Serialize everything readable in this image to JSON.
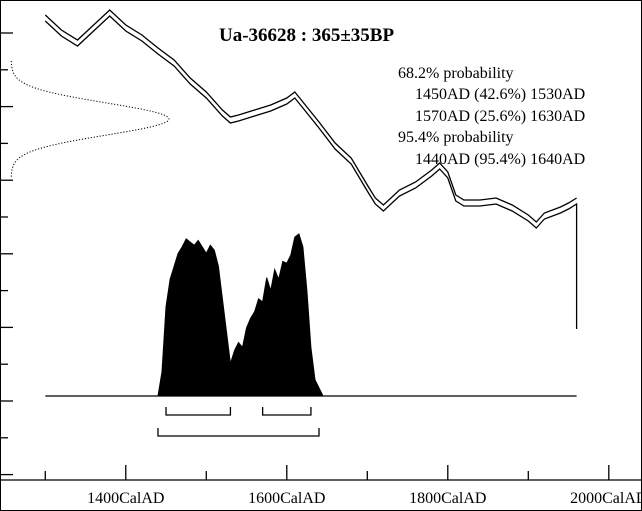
{
  "chart_data": {
    "type": "area",
    "title": "Ua-36628 : 365±35BP",
    "annotations": [
      "68.2% probability",
      "1450AD (42.6%) 1530AD",
      "1570AD (25.6%) 1630AD",
      "95.4% probability",
      "1440AD (95.4%) 1640AD"
    ],
    "x_ticks": [
      {
        "value": 1400,
        "label": "1400CalAD"
      },
      {
        "value": 1600,
        "label": "1600CalAD"
      },
      {
        "value": 1800,
        "label": "1800CalAD"
      },
      {
        "value": 2000,
        "label": "2000CalAD"
      }
    ],
    "xlim": [
      1245,
      2040
    ],
    "calibration_curve": {
      "x": [
        1300,
        1320,
        1340,
        1360,
        1380,
        1400,
        1420,
        1440,
        1460,
        1480,
        1500,
        1520,
        1530,
        1540,
        1560,
        1580,
        1600,
        1610,
        1620,
        1640,
        1660,
        1680,
        1700,
        1710,
        1720,
        1740,
        1760,
        1780,
        1790,
        1800,
        1810,
        1820,
        1840,
        1860,
        1880,
        1900,
        1910,
        1920,
        1940,
        1950,
        1960
      ],
      "y": [
        5,
        20,
        30,
        15,
        0,
        15,
        25,
        38,
        50,
        68,
        82,
        100,
        107,
        105,
        100,
        95,
        88,
        82,
        92,
        112,
        133,
        148,
        175,
        188,
        195,
        180,
        172,
        160,
        153,
        162,
        185,
        190,
        190,
        188,
        195,
        205,
        212,
        203,
        197,
        193,
        188
      ]
    },
    "radiocarbon_date": {
      "mean_bp": 365,
      "sigma_bp": 35
    },
    "probability_distribution": {
      "x": [
        1440,
        1445,
        1450,
        1455,
        1460,
        1465,
        1470,
        1475,
        1480,
        1485,
        1490,
        1495,
        1500,
        1505,
        1510,
        1515,
        1520,
        1525,
        1530,
        1535,
        1540,
        1545,
        1550,
        1555,
        1560,
        1565,
        1570,
        1575,
        1580,
        1585,
        1590,
        1595,
        1600,
        1605,
        1610,
        1615,
        1620,
        1625,
        1630,
        1635,
        1640,
        1645
      ],
      "density": [
        0,
        0.15,
        0.55,
        0.72,
        0.8,
        0.88,
        0.92,
        0.97,
        0.95,
        0.93,
        0.96,
        0.92,
        0.88,
        0.93,
        0.9,
        0.8,
        0.6,
        0.4,
        0.2,
        0.28,
        0.33,
        0.3,
        0.42,
        0.48,
        0.52,
        0.6,
        0.58,
        0.73,
        0.65,
        0.78,
        0.72,
        0.83,
        0.82,
        0.87,
        0.98,
        1.0,
        0.92,
        0.65,
        0.3,
        0.1,
        0.05,
        0
      ]
    },
    "ranges_68_2": [
      [
        1450,
        1530
      ],
      [
        1570,
        1630
      ]
    ],
    "ranges_95_4": [
      [
        1440,
        1640
      ]
    ],
    "grid": false
  }
}
